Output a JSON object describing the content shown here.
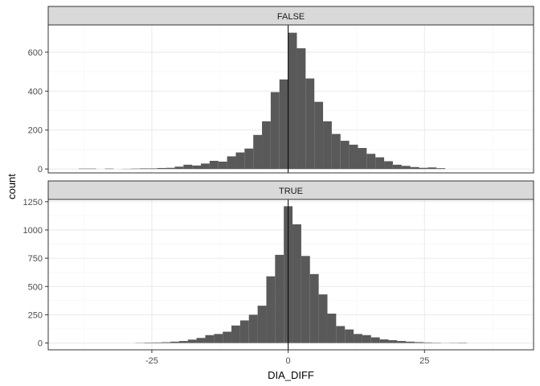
{
  "chart_data": {
    "type": "bar",
    "subtype": "faceted-histogram",
    "xlabel": "DIA_DIFF",
    "ylabel": "count",
    "xlim": [
      -44,
      45
    ],
    "x_ticks": [
      -25,
      0,
      25
    ],
    "x_tick_labels": [
      "-25",
      "0",
      "25"
    ],
    "bin_width": 1.6,
    "vline": 0,
    "grid": true,
    "colors": {
      "bar": "#595959",
      "strip": "#d9d9d9",
      "grid_major": "#ebebeb",
      "grid_minor": "#f5f5f5",
      "border": "#333333",
      "vline": "#000000"
    },
    "panels": [
      {
        "strip_label": "FALSE",
        "ylim": [
          -20,
          740
        ],
        "y_ticks": [
          0,
          200,
          400,
          600
        ],
        "y_tick_labels": [
          "0",
          "200",
          "400",
          "600"
        ],
        "bins": [
          [
            -37.6,
            2
          ],
          [
            -36.0,
            2
          ],
          [
            -32.8,
            2
          ],
          [
            -29.6,
            1
          ],
          [
            -28.0,
            2
          ],
          [
            -26.4,
            3
          ],
          [
            -24.8,
            3
          ],
          [
            -23.2,
            5
          ],
          [
            -21.6,
            6
          ],
          [
            -20.0,
            12
          ],
          [
            -18.4,
            22
          ],
          [
            -16.8,
            18
          ],
          [
            -15.2,
            28
          ],
          [
            -13.6,
            42
          ],
          [
            -12.0,
            38
          ],
          [
            -10.4,
            65
          ],
          [
            -8.8,
            85
          ],
          [
            -7.2,
            105
          ],
          [
            -5.6,
            175
          ],
          [
            -4.0,
            245
          ],
          [
            -2.4,
            395
          ],
          [
            -0.8,
            460
          ],
          [
            0.8,
            700
          ],
          [
            2.4,
            620
          ],
          [
            4.0,
            465
          ],
          [
            5.6,
            345
          ],
          [
            7.2,
            245
          ],
          [
            8.8,
            180
          ],
          [
            10.4,
            145
          ],
          [
            12.0,
            125
          ],
          [
            13.6,
            108
          ],
          [
            15.2,
            78
          ],
          [
            16.8,
            60
          ],
          [
            18.4,
            40
          ],
          [
            20.0,
            22
          ],
          [
            21.6,
            16
          ],
          [
            23.2,
            10
          ],
          [
            24.8,
            6
          ],
          [
            26.4,
            8
          ],
          [
            28.0,
            4
          ]
        ]
      },
      {
        "strip_label": "TRUE",
        "ylim": [
          -60,
          1270
        ],
        "y_ticks": [
          0,
          250,
          500,
          750,
          1000,
          1250
        ],
        "y_tick_labels": [
          "0",
          "250",
          "500",
          "750",
          "1000",
          "1250"
        ],
        "bins": [
          [
            -27.2,
            2
          ],
          [
            -25.6,
            4
          ],
          [
            -24.0,
            5
          ],
          [
            -22.4,
            7
          ],
          [
            -20.8,
            12
          ],
          [
            -19.2,
            18
          ],
          [
            -17.6,
            30
          ],
          [
            -16.0,
            45
          ],
          [
            -14.4,
            70
          ],
          [
            -12.8,
            80
          ],
          [
            -11.2,
            100
          ],
          [
            -9.6,
            155
          ],
          [
            -8.0,
            200
          ],
          [
            -6.4,
            250
          ],
          [
            -4.8,
            330
          ],
          [
            -3.2,
            590
          ],
          [
            -1.6,
            780
          ],
          [
            0.0,
            1210
          ],
          [
            1.6,
            1050
          ],
          [
            3.2,
            770
          ],
          [
            4.8,
            610
          ],
          [
            6.4,
            430
          ],
          [
            8.0,
            260
          ],
          [
            9.6,
            150
          ],
          [
            11.2,
            120
          ],
          [
            12.8,
            80
          ],
          [
            14.4,
            70
          ],
          [
            16.0,
            50
          ],
          [
            17.6,
            32
          ],
          [
            19.2,
            25
          ],
          [
            20.8,
            18
          ],
          [
            22.4,
            12
          ],
          [
            24.0,
            8
          ],
          [
            25.6,
            5
          ],
          [
            27.2,
            3
          ],
          [
            28.8,
            1
          ],
          [
            30.4,
            2
          ],
          [
            32.0,
            3
          ]
        ]
      }
    ]
  }
}
